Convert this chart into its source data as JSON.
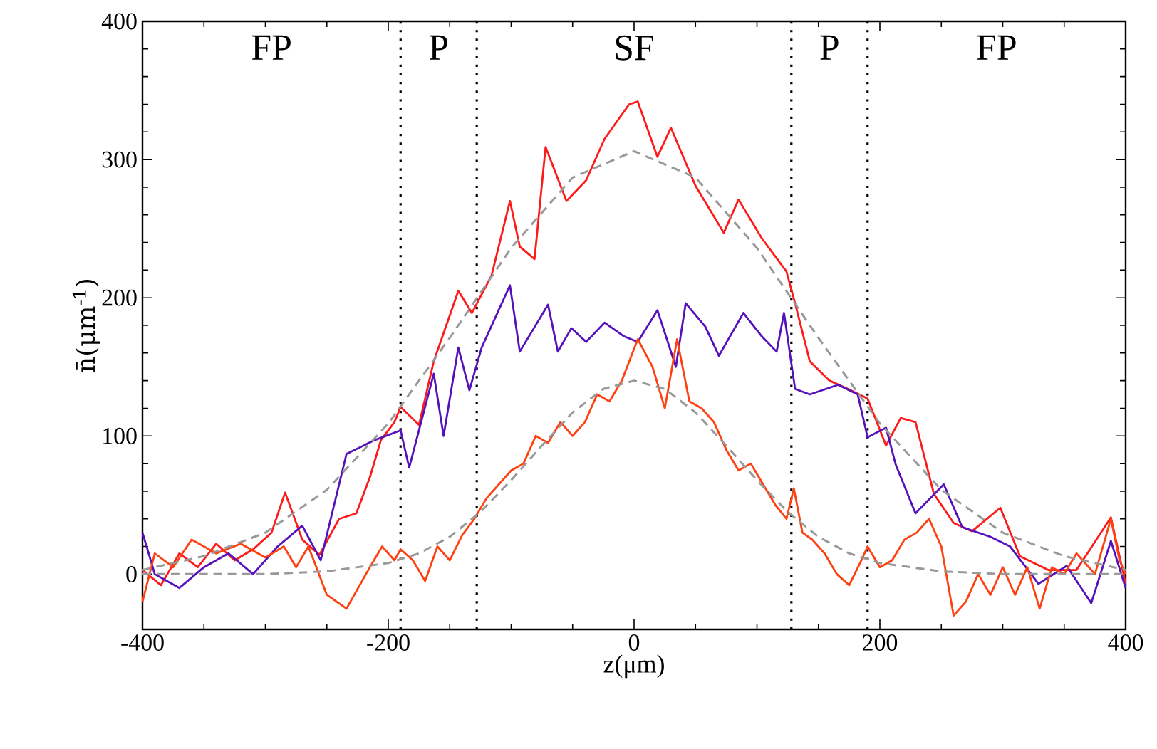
{
  "chart_data": {
    "type": "line",
    "xlabel": "z(μm)",
    "ylabel": "n̄(μm$^{-1}$)",
    "xlim": [
      -400,
      400
    ],
    "ylim": [
      -40,
      400
    ],
    "xticks": [
      -400,
      -200,
      0,
      200,
      400
    ],
    "yticks": [
      0,
      100,
      200,
      300,
      400
    ],
    "marker": "none",
    "series": [
      {
        "color": "#ff1a1a",
        "line_style": "solid",
        "x": [
          -400,
          -385,
          -370,
          -355,
          -340,
          -325,
          -310,
          -295,
          -284,
          -270,
          -256,
          -240,
          -226,
          -215,
          -206,
          -195,
          -190,
          -175,
          -163,
          -143,
          -132,
          -116,
          -101,
          -93,
          -81,
          -72,
          -55,
          -39,
          -24,
          -4,
          3,
          19,
          30,
          50,
          73,
          85,
          104,
          124,
          131,
          143,
          159,
          174,
          190,
          205,
          217,
          229,
          244,
          260,
          275,
          298,
          314,
          337,
          360,
          388,
          400
        ],
        "values": [
          3,
          -8,
          15,
          5,
          22,
          10,
          18,
          30,
          59,
          25,
          14,
          40,
          44,
          70,
          97,
          110,
          121,
          108,
          154,
          205,
          189,
          216,
          270,
          237,
          228,
          309,
          270,
          285,
          315,
          340,
          342,
          302,
          323,
          281,
          247,
          271,
          243,
          219,
          196,
          154,
          140,
          134,
          127,
          93,
          113,
          110,
          58,
          37,
          31,
          48,
          13,
          3,
          3,
          41,
          -7
        ]
      },
      {
        "color": "#5511bb",
        "line_style": "solid",
        "x": [
          -400,
          -390,
          -370,
          -350,
          -330,
          -310,
          -290,
          -270,
          -255,
          -234,
          -211,
          -190,
          -183,
          -163,
          -155,
          -143,
          -134,
          -124,
          -101,
          -93,
          -70,
          -62,
          -51,
          -39,
          -24,
          -8,
          3,
          19,
          34,
          42,
          58,
          69,
          89,
          104,
          116,
          122,
          131,
          143,
          166,
          182,
          190,
          205,
          213,
          229,
          252,
          267,
          290,
          306,
          329,
          352,
          372,
          388,
          400
        ],
        "values": [
          30,
          0,
          -10,
          5,
          15,
          0,
          20,
          35,
          10,
          87,
          97,
          104,
          77,
          145,
          100,
          164,
          133,
          164,
          209,
          161,
          195,
          161,
          178,
          168,
          182,
          172,
          168,
          191,
          150,
          196,
          179,
          158,
          189,
          172,
          161,
          189,
          134,
          130,
          137,
          130,
          99,
          106,
          79,
          44,
          65,
          34,
          27,
          20,
          -7,
          6,
          -21,
          24,
          -10
        ]
      },
      {
        "color": "#ff4010",
        "line_style": "solid",
        "x": [
          -400,
          -390,
          -375,
          -360,
          -340,
          -320,
          -300,
          -285,
          -275,
          -265,
          -250,
          -234,
          -215,
          -205,
          -195,
          -190,
          -180,
          -170,
          -160,
          -150,
          -140,
          -130,
          -120,
          -110,
          -100,
          -90,
          -80,
          -70,
          -60,
          -50,
          -40,
          -30,
          -20,
          -10,
          3,
          15,
          25,
          35,
          45,
          55,
          65,
          75,
          85,
          95,
          105,
          115,
          124,
          130,
          137,
          145,
          155,
          165,
          175,
          185,
          190,
          200,
          210,
          220,
          230,
          240,
          250,
          260,
          270,
          280,
          290,
          300,
          310,
          320,
          330,
          340,
          350,
          360,
          375,
          388,
          395,
          400
        ],
        "values": [
          -20,
          15,
          5,
          25,
          15,
          22,
          12,
          20,
          5,
          20,
          -15,
          -25,
          5,
          20,
          10,
          18,
          10,
          -5,
          20,
          10,
          28,
          40,
          55,
          65,
          75,
          80,
          100,
          95,
          110,
          100,
          110,
          130,
          125,
          140,
          170,
          150,
          120,
          170,
          125,
          120,
          110,
          90,
          75,
          80,
          65,
          50,
          40,
          62,
          30,
          25,
          15,
          0,
          -8,
          10,
          20,
          5,
          10,
          25,
          30,
          40,
          20,
          -30,
          -20,
          0,
          -15,
          5,
          -15,
          5,
          -25,
          5,
          0,
          15,
          0,
          40,
          10,
          0
        ]
      },
      {
        "color": "#999999",
        "line_style": "dashed",
        "x": [
          -400,
          -350,
          -300,
          -250,
          -200,
          -150,
          -100,
          -50,
          0,
          50,
          100,
          150,
          200,
          250,
          300,
          350,
          400
        ],
        "values": [
          3,
          13,
          30,
          61,
          109,
          171,
          236,
          287,
          306,
          287,
          236,
          171,
          109,
          61,
          30,
          13,
          3
        ]
      },
      {
        "color": "#999999",
        "line_style": "dashed",
        "x": [
          -400,
          -300,
          -250,
          -200,
          -175,
          -150,
          -125,
          -100,
          -75,
          -50,
          -25,
          0,
          25,
          50,
          75,
          100,
          125,
          150,
          175,
          200,
          250,
          300,
          400
        ],
        "values": [
          0,
          0,
          2,
          8,
          15,
          27,
          45,
          68,
          93,
          117,
          134,
          140,
          134,
          117,
          93,
          68,
          45,
          27,
          15,
          8,
          2,
          0,
          0
        ]
      }
    ],
    "ref_lines": [
      {
        "axis": "x",
        "value": -190,
        "color": "#000000",
        "line_style": "dotted"
      },
      {
        "axis": "x",
        "value": -128,
        "color": "#000000",
        "line_style": "dotted"
      },
      {
        "axis": "x",
        "value": 128,
        "color": "#000000",
        "line_style": "dotted"
      },
      {
        "axis": "x",
        "value": 190,
        "color": "#000000",
        "line_style": "dotted"
      }
    ],
    "annotations": [
      "FP",
      "P",
      "SF",
      "P",
      "FP"
    ]
  }
}
